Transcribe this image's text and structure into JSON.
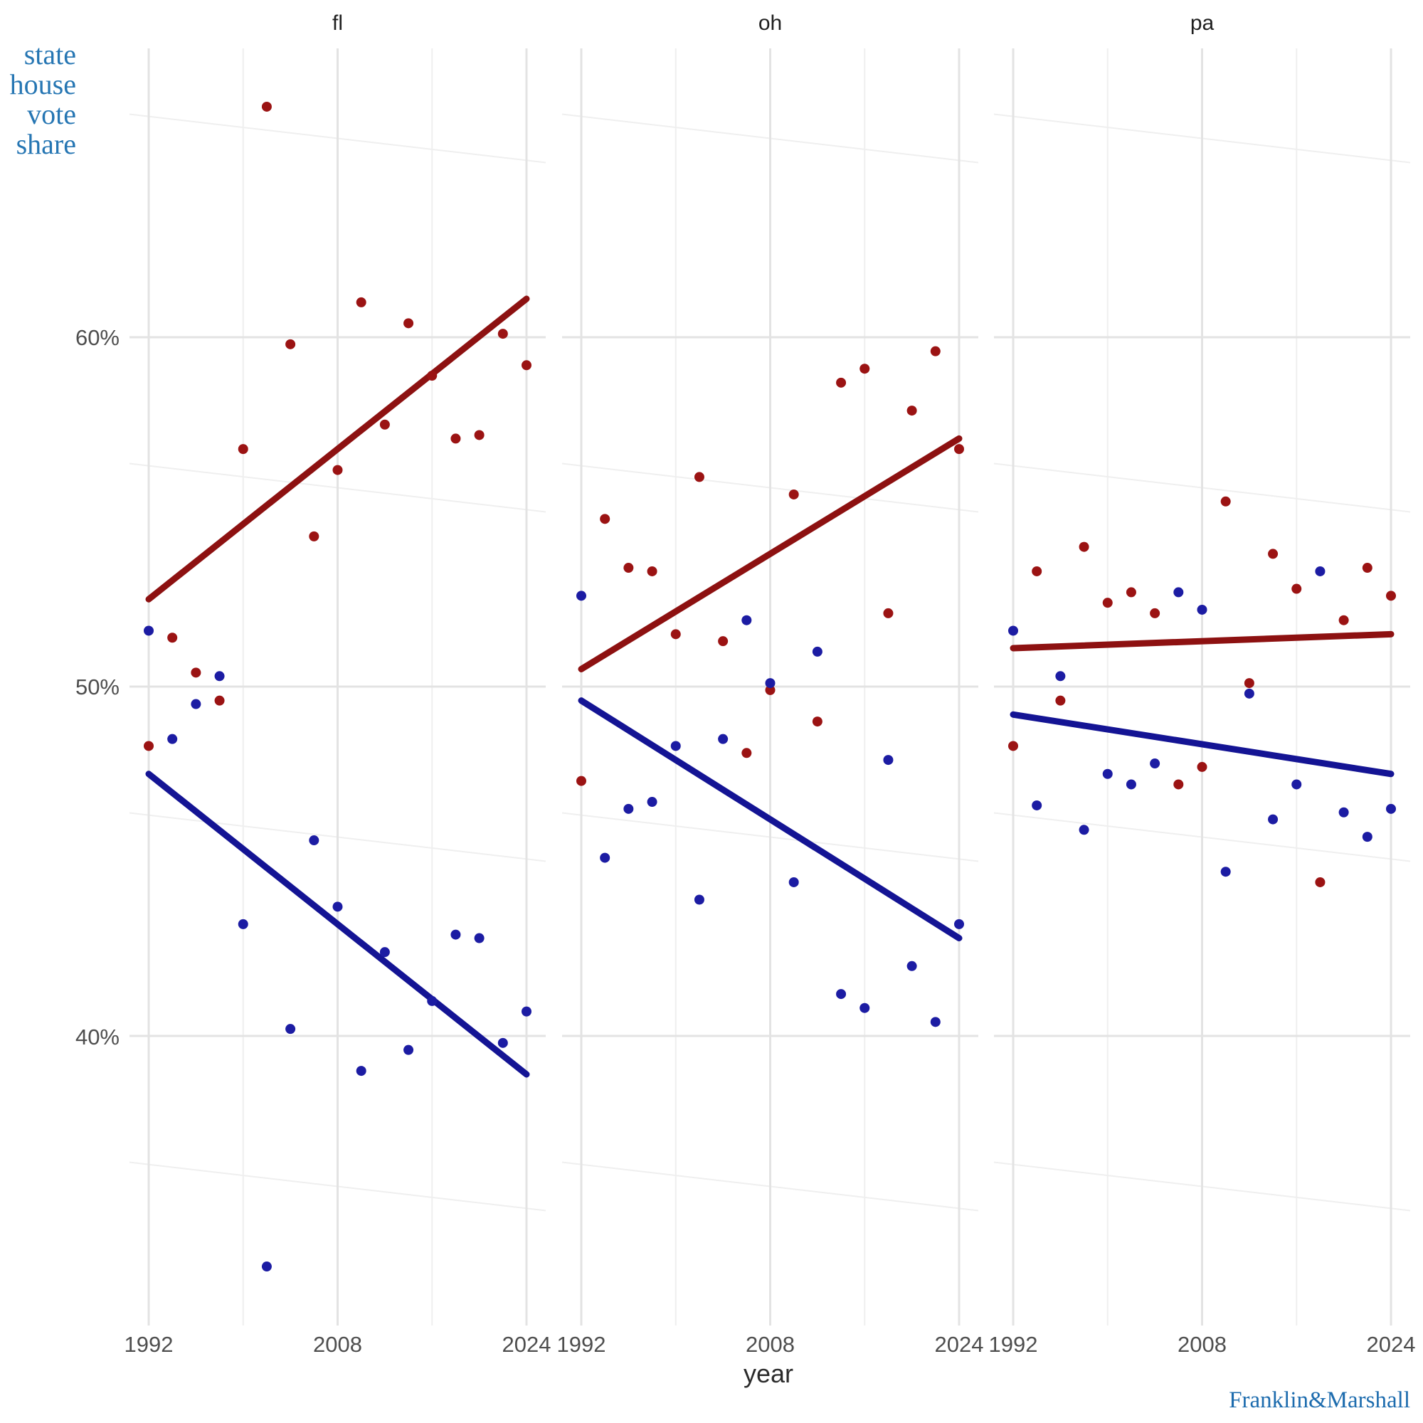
{
  "y_axis": {
    "label_lines": [
      "state",
      "house",
      "vote",
      "share"
    ],
    "label_color": "#2676b3"
  },
  "branding": {
    "text": "Franklin&Marshall",
    "color": "#1d6cae"
  },
  "colors": {
    "red_point": "#9b1313",
    "red_line": "#8d1111",
    "blue_point": "#1c1ca3",
    "blue_line": "#141494",
    "grid_major": "#e3e3e3",
    "grid_minor": "#efefef",
    "axis_text": "#4e4e4e"
  },
  "chart_data": {
    "type": "scatter",
    "title": "",
    "xlabel": "year",
    "ylabel": "state house vote share",
    "x_ticks": [
      "1992",
      "2008",
      "2024"
    ],
    "x_tick_years": [
      1992,
      2008,
      2024
    ],
    "y_ticks": [
      "60%",
      "50%",
      "40%"
    ],
    "y_tick_values": [
      60,
      50,
      40
    ],
    "y_minor_gridlines": [
      65,
      55,
      45,
      35
    ],
    "x_minor_gridline_years": [
      2000,
      2016
    ],
    "xlim": [
      1990.4,
      2025.6
    ],
    "ylim": [
      31.7,
      68.3
    ],
    "grid": "on",
    "legend": "none",
    "years": [
      1992,
      1994,
      1996,
      1998,
      2000,
      2002,
      2004,
      2006,
      2008,
      2010,
      2012,
      2014,
      2016,
      2018,
      2020,
      2022,
      2024
    ],
    "facets": [
      {
        "label": "fl",
        "series": [
          {
            "name": "red",
            "values": [
              48.3,
              51.4,
              50.4,
              49.6,
              56.8,
              66.6,
              59.8,
              54.3,
              56.2,
              61.0,
              57.5,
              60.4,
              58.9,
              57.1,
              57.2,
              60.1,
              59.2
            ],
            "trend_x": [
              1992,
              2024
            ],
            "trend_y": [
              52.5,
              61.1
            ]
          },
          {
            "name": "blue",
            "values": [
              51.6,
              48.5,
              49.5,
              50.3,
              43.2,
              33.4,
              40.2,
              45.6,
              43.7,
              39.0,
              42.4,
              39.6,
              41.0,
              42.9,
              42.8,
              39.8,
              40.7
            ],
            "trend_x": [
              1992,
              2024
            ],
            "trend_y": [
              47.5,
              38.9
            ]
          }
        ]
      },
      {
        "label": "oh",
        "series": [
          {
            "name": "red",
            "values": [
              47.3,
              54.8,
              53.4,
              53.3,
              51.5,
              56.0,
              51.3,
              48.1,
              49.9,
              55.5,
              49.0,
              58.7,
              59.1,
              52.1,
              57.9,
              59.6,
              56.8
            ],
            "trend_x": [
              1992,
              2024
            ],
            "trend_y": [
              50.5,
              57.1
            ]
          },
          {
            "name": "blue",
            "values": [
              52.6,
              45.1,
              46.5,
              46.7,
              48.3,
              43.9,
              48.5,
              51.9,
              50.1,
              44.4,
              51.0,
              41.2,
              40.8,
              47.9,
              42.0,
              40.4,
              43.2
            ],
            "trend_x": [
              1992,
              2024
            ],
            "trend_y": [
              49.6,
              42.8
            ]
          }
        ]
      },
      {
        "label": "pa",
        "series": [
          {
            "name": "red",
            "values": [
              48.3,
              53.3,
              49.6,
              54.0,
              52.4,
              52.7,
              52.1,
              47.2,
              47.7,
              55.3,
              50.1,
              53.8,
              52.8,
              44.4,
              51.9,
              53.4,
              52.6
            ],
            "trend_x": [
              1992,
              2024
            ],
            "trend_y": [
              51.1,
              51.5
            ]
          },
          {
            "name": "blue",
            "values": [
              51.6,
              46.6,
              50.3,
              45.9,
              47.5,
              47.2,
              47.8,
              52.7,
              52.2,
              44.7,
              49.8,
              46.2,
              47.2,
              53.3,
              46.4,
              45.7,
              46.5
            ],
            "trend_x": [
              1992,
              2024
            ],
            "trend_y": [
              49.2,
              47.5
            ]
          }
        ]
      }
    ]
  }
}
